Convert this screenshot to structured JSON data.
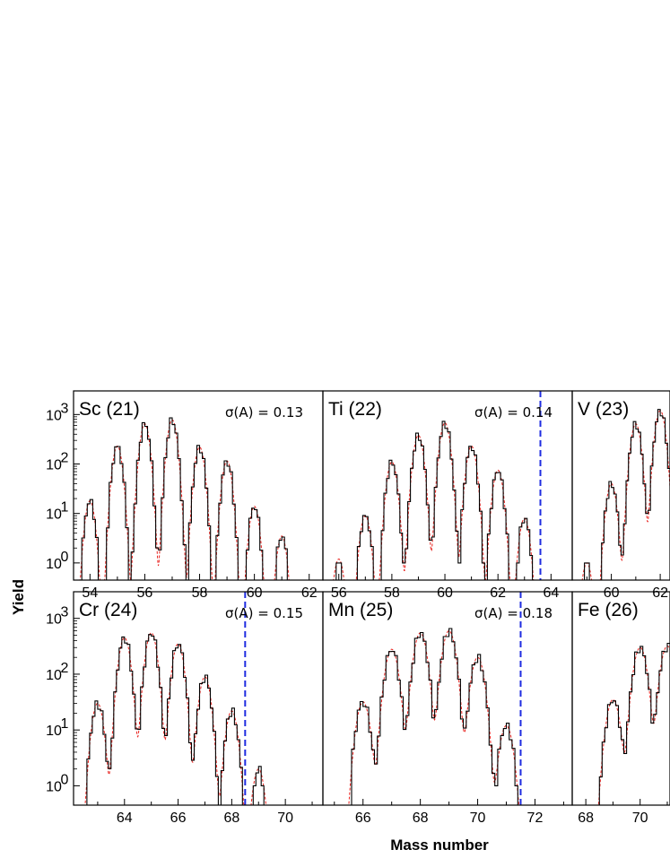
{
  "figure": {
    "xlabel": "Mass number",
    "ylabel": "Yield"
  },
  "colors": {
    "data": "#000000",
    "fit": "#e8201c",
    "cutoff": "#1f2ce0"
  },
  "chart_data": [
    {
      "type": "step",
      "panel_label": "Sc (21)",
      "sigma": "σ(A) = 0.13",
      "xlim": [
        53.4,
        62.5
      ],
      "ylim": [
        0.45,
        3000
      ],
      "yscale": "log",
      "xticks": [
        "54",
        "56",
        "58",
        "60",
        "62"
      ],
      "cutoff": null,
      "peaks": [
        {
          "A": 54,
          "height": 18
        },
        {
          "A": 55,
          "height": 230
        },
        {
          "A": 56,
          "height": 650
        },
        {
          "A": 57,
          "height": 780
        },
        {
          "A": 58,
          "height": 220
        },
        {
          "A": 59,
          "height": 115
        },
        {
          "A": 60,
          "height": 14
        },
        {
          "A": 61,
          "height": 3.5
        }
      ]
    },
    {
      "type": "step",
      "panel_label": "Ti (22)",
      "sigma": "σ(A) = 0.14",
      "xlim": [
        55.4,
        64.8
      ],
      "ylim": [
        0.45,
        3000
      ],
      "yscale": "log",
      "xticks": [
        "56",
        "58",
        "60",
        "62",
        "64"
      ],
      "cutoff": 63.6,
      "peaks": [
        {
          "A": 56,
          "height": 1.2
        },
        {
          "A": 57,
          "height": 9
        },
        {
          "A": 58,
          "height": 110
        },
        {
          "A": 59,
          "height": 380
        },
        {
          "A": 60,
          "height": 680
        },
        {
          "A": 61,
          "height": 230
        },
        {
          "A": 62,
          "height": 75
        },
        {
          "A": 63,
          "height": 8
        }
      ]
    },
    {
      "type": "step",
      "panel_label": "V (23)",
      "sigma": "",
      "xlim": [
        58.4,
        62.4
      ],
      "ylim": [
        0.45,
        3000
      ],
      "yscale": "log",
      "xticks": [
        "60",
        "62"
      ],
      "cutoff": null,
      "peaks": [
        {
          "A": 59,
          "height": 1
        },
        {
          "A": 60,
          "height": 40
        },
        {
          "A": 61,
          "height": 650
        },
        {
          "A": 62,
          "height": 1200
        }
      ]
    },
    {
      "type": "step",
      "panel_label": "Cr (24)",
      "sigma": "σ(A) = 0.15",
      "xlim": [
        62.1,
        71.4
      ],
      "ylim": [
        0.45,
        3000
      ],
      "yscale": "log",
      "xticks": [
        "64",
        "66",
        "68",
        "70"
      ],
      "cutoff": 68.5,
      "peaks": [
        {
          "A": 63,
          "height": 30
        },
        {
          "A": 64,
          "height": 450
        },
        {
          "A": 65,
          "height": 550
        },
        {
          "A": 66,
          "height": 350
        },
        {
          "A": 67,
          "height": 90
        },
        {
          "A": 68,
          "height": 22
        },
        {
          "A": 69,
          "height": 2
        }
      ]
    },
    {
      "type": "step",
      "panel_label": "Mn (25)",
      "sigma": "σ(A) = 0.18",
      "xlim": [
        64.6,
        73.3
      ],
      "ylim": [
        0.45,
        3000
      ],
      "yscale": "log",
      "xticks": [
        "66",
        "68",
        "70",
        "72"
      ],
      "cutoff": 71.5,
      "peaks": [
        {
          "A": 66,
          "height": 32
        },
        {
          "A": 67,
          "height": 280
        },
        {
          "A": 68,
          "height": 550
        },
        {
          "A": 69,
          "height": 600
        },
        {
          "A": 70,
          "height": 200
        },
        {
          "A": 71,
          "height": 12
        }
      ]
    },
    {
      "type": "step",
      "panel_label": "Fe (26)",
      "sigma": "",
      "xlim": [
        67.5,
        71.1
      ],
      "ylim": [
        0.45,
        3000
      ],
      "yscale": "log",
      "xticks": [
        "68",
        "70"
      ],
      "cutoff": null,
      "peaks": [
        {
          "A": 69,
          "height": 35
        },
        {
          "A": 70,
          "height": 300
        },
        {
          "A": 71,
          "height": 320
        }
      ]
    }
  ]
}
